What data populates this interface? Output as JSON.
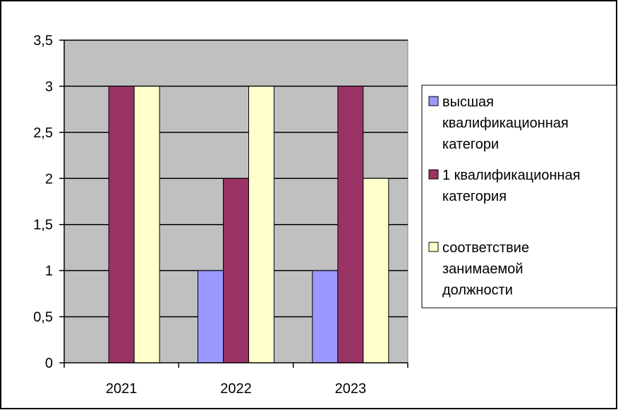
{
  "colors": {
    "plot_background": "#c0c0c0",
    "series": [
      "#9999ff",
      "#993366",
      "#ffffcc"
    ],
    "grid": "#000000",
    "frame": "#000000"
  },
  "chart_data": {
    "type": "bar",
    "categories": [
      "2021",
      "2022",
      "2023"
    ],
    "series": [
      {
        "name": "высшая квалификационная категори",
        "values": [
          0,
          1,
          1
        ]
      },
      {
        "name": "1 квалификационная категория",
        "values": [
          3,
          2,
          3
        ]
      },
      {
        "name": "соответствие занимаемой должности",
        "values": [
          3,
          3,
          2
        ]
      }
    ],
    "legend_lines": [
      [
        "высшая",
        "квалификационная",
        "категори"
      ],
      [
        "1 квалификационная",
        "категория"
      ],
      [
        "соответствие",
        "занимаемой",
        "должности"
      ]
    ],
    "y_ticks": [
      "0",
      "0,5",
      "1",
      "1,5",
      "2",
      "2,5",
      "3",
      "3,5"
    ],
    "ylim": [
      0,
      3.5
    ],
    "grid": true,
    "legend_position": "right"
  }
}
